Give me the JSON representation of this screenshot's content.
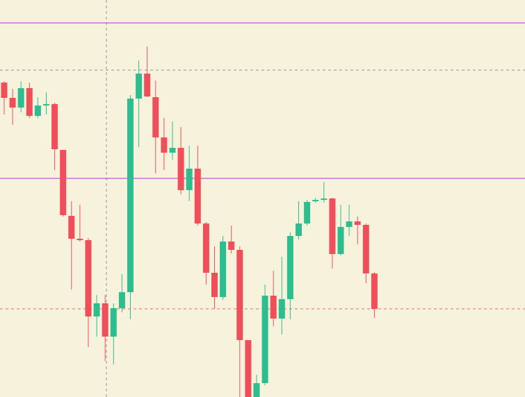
{
  "chart_data": {
    "type": "candlestick",
    "ylim": [
      0,
      572
    ],
    "up_color": "#2ebd8e",
    "down_color": "#ef4f5a",
    "background": "#f7f2dc",
    "open": [
      453,
      431,
      417,
      445,
      405,
      420,
      422,
      356,
      261,
      228,
      226,
      116,
      135,
      87,
      128,
      151,
      430,
      466,
      432,
      374,
      352,
      359,
      298,
      329,
      250,
      179,
      144,
      224,
      212,
      82,
      0,
      20,
      146,
      113,
      141,
      232,
      250,
      282,
      284,
      286,
      206,
      245,
      253,
      248,
      178
    ],
    "high": [
      455,
      444,
      455,
      453,
      432,
      439,
      424,
      356,
      282,
      277,
      229,
      147,
      147,
      135,
      177,
      435,
      485,
      505,
      456,
      402,
      397,
      389,
      362,
      362,
      252,
      217,
      232,
      247,
      217,
      82,
      32,
      162,
      182,
      202,
      237,
      282,
      284,
      287,
      310,
      287,
      277,
      277,
      260,
      250,
      180
    ],
    "low": [
      407,
      392,
      410,
      402,
      402,
      407,
      327,
      260,
      155,
      224,
      72,
      87,
      52,
      47,
      122,
      112,
      360,
      432,
      322,
      327,
      342,
      292,
      282,
      247,
      162,
      127,
      140,
      207,
      0,
      0,
      0,
      17,
      102,
      90,
      112,
      227,
      247,
      280,
      280,
      185,
      204,
      232,
      220,
      164,
      114
    ],
    "close": [
      431,
      417,
      445,
      405,
      420,
      422,
      357,
      262,
      228,
      226,
      116,
      135,
      87,
      128,
      151,
      430,
      466,
      433,
      374,
      352,
      359,
      298,
      329,
      250,
      179,
      144,
      224,
      212,
      82,
      0,
      20,
      146,
      113,
      141,
      232,
      250,
      281,
      284,
      286,
      206,
      245,
      253,
      248,
      178,
      127
    ],
    "levels": [
      {
        "value": 539,
        "color": "#b02ccf",
        "style": "solid"
      },
      {
        "value": 315,
        "color": "#b02ccf",
        "style": "solid"
      },
      {
        "value": 471,
        "color": "#8a9a8a",
        "style": "dashed"
      },
      {
        "value": 127,
        "color": "#e06666",
        "style": "dashed"
      }
    ]
  }
}
